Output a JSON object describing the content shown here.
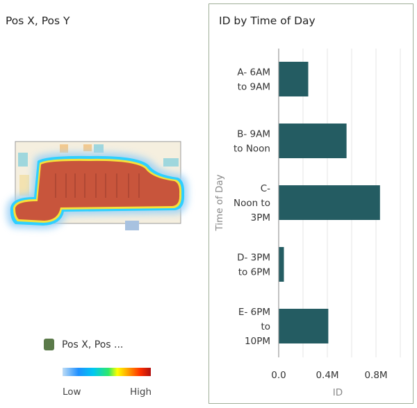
{
  "left_panel": {
    "title": "Pos X, Pos Y",
    "legend": {
      "name": "Pos X, Pos ...",
      "low_label": "Low",
      "high_label": "High",
      "icon": "map-layer-icon"
    }
  },
  "chart_data": {
    "type": "bar",
    "orientation": "horizontal",
    "title": "ID by Time of Day",
    "xlabel": "ID",
    "ylabel": "Time of Day",
    "categories": [
      [
        "A- 6AM",
        "to 9AM"
      ],
      [
        "B- 9AM",
        "to Noon"
      ],
      [
        "C-",
        "Noon to",
        "3PM"
      ],
      [
        "D- 3PM",
        "to 6PM"
      ],
      [
        "E- 6PM",
        "to",
        "10PM"
      ]
    ],
    "values": [
      0.24,
      0.555,
      0.83,
      0.04,
      0.405
    ],
    "value_unit": "M",
    "xlim": [
      0,
      1.0
    ],
    "ticks": [
      {
        "v": 0,
        "label": "0.0"
      },
      {
        "v": 0.4,
        "label": "0.4M"
      },
      {
        "v": 0.8,
        "label": "0.8M"
      }
    ],
    "gridlines": [
      0.2,
      0.4,
      0.6,
      0.8,
      1.0
    ],
    "grid": true,
    "bar_color": "#245c62"
  }
}
